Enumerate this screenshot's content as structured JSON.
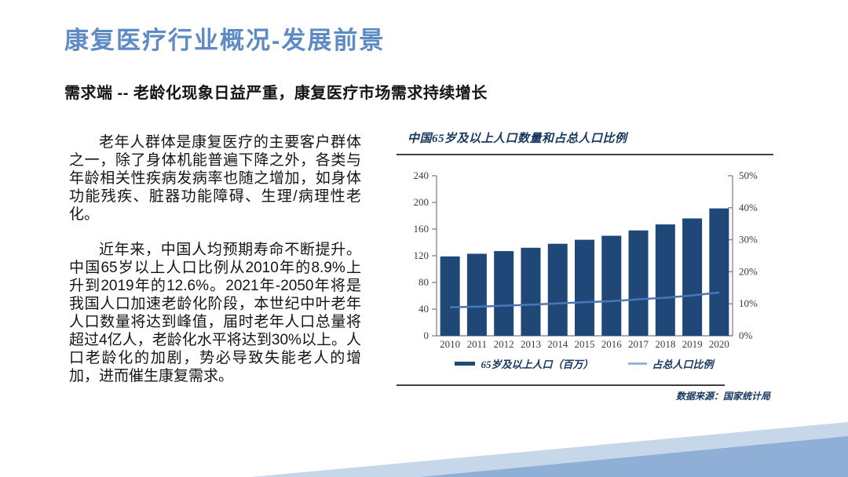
{
  "slide": {
    "title": "康复医疗行业概况-发展前景",
    "subtitle": "需求端 -- 老龄化现象日益严重，康复医疗市场需求持续增长",
    "paragraphs": [
      "老年人群体是康复医疗的主要客户群体之一，除了身体机能普遍下降之外，各类与年龄相关性疾病发病率也随之增加，如身体功能残疾、脏器功能障碍、生理/病理性老化。",
      "近年来，中国人均预期寿命不断提升。中国65岁以上人口比例从2010年的8.9%上升到2019年的12.6%。2021年-2050年将是我国人口加速老龄化阶段，本世纪中叶老年人口数量将达到峰值，届时老年人口总量将超过4亿人，老龄化水平将达到30%以上。人口老龄化的加剧，势必导致失能老人的增加，进而催生康复需求。"
    ]
  },
  "colors": {
    "title_blue": "#5E8BC6",
    "chart_title_navy": "#17375E",
    "bar_navy": "#1F4878",
    "line_blue": "#4A78B2",
    "legend_line_blue": "#8FB4DC",
    "decoration_light": "#C7D7EA",
    "decoration_medium": "#8FAFD7",
    "rule_gray": "#3F3F3F"
  },
  "chart_data": {
    "type": "bar",
    "title": "中国65岁及以上人口数量和占总人口比例",
    "source": "数据来源：国家统计局",
    "categories": [
      "2010",
      "2011",
      "2012",
      "2013",
      "2014",
      "2015",
      "2016",
      "2017",
      "2018",
      "2019",
      "2020"
    ],
    "series": [
      {
        "name": "65岁及以上人口（百万）",
        "type": "bar",
        "axis": "left",
        "color": "#1F4878",
        "values": [
          119,
          123,
          127,
          132,
          138,
          144,
          150,
          158,
          167,
          176,
          191
        ]
      },
      {
        "name": "占总人口比例",
        "type": "line",
        "axis": "right",
        "color": "#4A78B2",
        "values": [
          8.9,
          9.1,
          9.4,
          9.7,
          10.1,
          10.5,
          10.8,
          11.4,
          11.9,
          12.6,
          13.5
        ]
      }
    ],
    "left_axis": {
      "min": 0,
      "max": 240,
      "step": 40,
      "ticks": [
        "0",
        "40",
        "80",
        "120",
        "160",
        "200",
        "240"
      ]
    },
    "right_axis": {
      "min": 0,
      "max": 50,
      "step": 10,
      "ticks": [
        "0%",
        "10%",
        "20%",
        "30%",
        "40%",
        "50%"
      ]
    },
    "grid": false,
    "legend_position": "bottom"
  }
}
